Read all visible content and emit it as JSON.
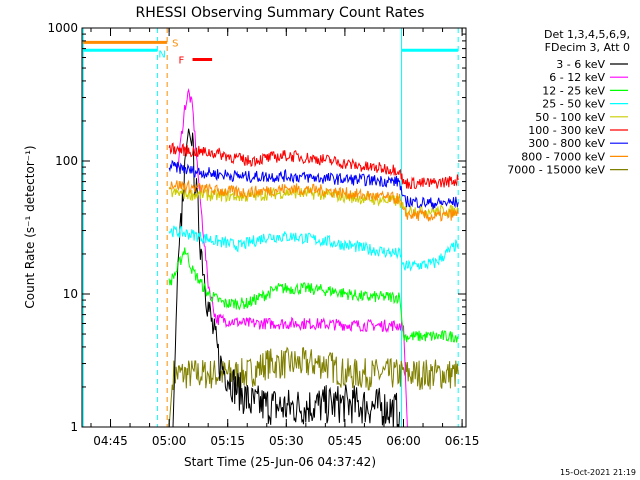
{
  "chart_data": {
    "type": "line",
    "title": "RHESSI Observing Summary Count Rates",
    "xlabel": "Start Time (25-Jun-06 04:37:42)",
    "ylabel": "Count Rate (s⁻¹ detector⁻¹)",
    "y_scale": "log",
    "ylim": [
      1,
      1000
    ],
    "xlim": [
      "04:37:42",
      "06:16:00"
    ],
    "x_ticks": [
      "04:45",
      "05:00",
      "05:15",
      "05:30",
      "05:45",
      "06:00",
      "06:15"
    ],
    "y_ticks": [
      "1",
      "10",
      "100",
      "1000"
    ],
    "legend_header": [
      "Det 1,3,4,5,6,9,",
      "FDecim 3, Att 0"
    ],
    "legend_placement": "right",
    "timestamp": "15-Oct-2021 21:19",
    "markers": {
      "S": "S",
      "N": "N",
      "F": "F"
    },
    "series": [
      {
        "name": "3 - 6 keV",
        "color": "#000000",
        "points": [
          [
            "05:01",
            1
          ],
          [
            "05:02",
            10
          ],
          [
            "05:04",
            100
          ],
          [
            "05:05",
            175
          ],
          [
            "05:06",
            120
          ],
          [
            "05:08",
            25
          ],
          [
            "05:10",
            8
          ],
          [
            "05:13",
            3
          ],
          [
            "05:17",
            2
          ],
          [
            "05:21",
            1.5
          ],
          [
            "05:30",
            1.4
          ],
          [
            "05:45",
            1.5
          ],
          [
            "05:55",
            1.4
          ],
          [
            "05:59",
            1.3
          ]
        ]
      },
      {
        "name": "6 - 12 keV",
        "color": "#ff00ff",
        "points": [
          [
            "05:02",
            80
          ],
          [
            "05:04",
            250
          ],
          [
            "05:05",
            330
          ],
          [
            "05:06",
            250
          ],
          [
            "05:08",
            50
          ],
          [
            "05:10",
            12
          ],
          [
            "05:12",
            6.5
          ],
          [
            "05:20",
            6
          ],
          [
            "05:35",
            6
          ],
          [
            "05:50",
            5.8
          ],
          [
            "06:00",
            5.8
          ],
          [
            "06:01",
            1
          ]
        ]
      },
      {
        "name": "12 - 25 keV",
        "color": "#00ff00",
        "points": [
          [
            "05:00",
            12
          ],
          [
            "05:02",
            15
          ],
          [
            "05:04",
            22
          ],
          [
            "05:06",
            15
          ],
          [
            "05:10",
            10
          ],
          [
            "05:14",
            8.5
          ],
          [
            "05:20",
            8.5
          ],
          [
            "05:28",
            11
          ],
          [
            "05:35",
            11
          ],
          [
            "05:42",
            10.5
          ],
          [
            "05:50",
            9.5
          ],
          [
            "05:59",
            9.5
          ],
          [
            "06:00",
            4.8
          ],
          [
            "06:14",
            4.8
          ]
        ]
      },
      {
        "name": "25 - 50 keV",
        "color": "#00ffff",
        "points": [
          [
            "05:00",
            30
          ],
          [
            "05:06",
            28
          ],
          [
            "05:12",
            25
          ],
          [
            "05:18",
            23
          ],
          [
            "05:25",
            27
          ],
          [
            "05:32",
            27
          ],
          [
            "05:40",
            25
          ],
          [
            "05:50",
            22
          ],
          [
            "05:59",
            20
          ],
          [
            "06:00",
            16
          ],
          [
            "06:08",
            17
          ],
          [
            "06:14",
            24
          ]
        ]
      },
      {
        "name": "50 - 100 keV",
        "color": "#cccc00",
        "points": [
          [
            "05:00",
            58
          ],
          [
            "05:06",
            56
          ],
          [
            "05:12",
            55
          ],
          [
            "05:20",
            54
          ],
          [
            "05:30",
            58
          ],
          [
            "05:40",
            56
          ],
          [
            "05:50",
            52
          ],
          [
            "05:59",
            50
          ],
          [
            "06:00",
            43
          ],
          [
            "06:08",
            42
          ],
          [
            "06:14",
            42
          ]
        ]
      },
      {
        "name": "100 - 300 keV",
        "color": "#ff0000",
        "points": [
          [
            "05:00",
            125
          ],
          [
            "05:06",
            118
          ],
          [
            "05:12",
            115
          ],
          [
            "05:20",
            100
          ],
          [
            "05:30",
            110
          ],
          [
            "05:40",
            102
          ],
          [
            "05:50",
            90
          ],
          [
            "05:59",
            86
          ],
          [
            "06:00",
            68
          ],
          [
            "06:08",
            68
          ],
          [
            "06:14",
            72
          ]
        ]
      },
      {
        "name": "300 - 800 keV",
        "color": "#0000ff",
        "points": [
          [
            "05:00",
            92
          ],
          [
            "05:06",
            84
          ],
          [
            "05:12",
            80
          ],
          [
            "05:20",
            76
          ],
          [
            "05:30",
            77
          ],
          [
            "05:40",
            74
          ],
          [
            "05:50",
            72
          ],
          [
            "05:59",
            70
          ],
          [
            "06:00",
            50
          ],
          [
            "06:08",
            48
          ],
          [
            "06:14",
            49
          ]
        ]
      },
      {
        "name": "800 - 7000 keV",
        "color": "#ff8c00",
        "points": [
          [
            "05:00",
            68
          ],
          [
            "05:06",
            63
          ],
          [
            "05:12",
            60
          ],
          [
            "05:20",
            58
          ],
          [
            "05:30",
            62
          ],
          [
            "05:40",
            60
          ],
          [
            "05:50",
            55
          ],
          [
            "05:59",
            52
          ],
          [
            "06:00",
            40
          ],
          [
            "06:08",
            38
          ],
          [
            "06:14",
            40
          ]
        ]
      },
      {
        "name": "7000 - 15000 keV",
        "color": "#808000",
        "points": [
          [
            "05:00",
            1
          ],
          [
            "05:01",
            2.5
          ],
          [
            "05:20",
            2.5
          ],
          [
            "05:25",
            3
          ],
          [
            "05:40",
            3
          ],
          [
            "05:45",
            2.5
          ],
          [
            "06:14",
            2.5
          ]
        ]
      }
    ],
    "attenuator_bars": [
      {
        "color": "#00ffff",
        "value": 680,
        "start": "04:38:00",
        "end": "04:57:00"
      },
      {
        "color": "#00ffff",
        "value": 680,
        "start": "05:59:30",
        "end": "06:14:00"
      }
    ],
    "saa_bar": {
      "color": "#ff8c00",
      "value": 780,
      "start": "04:38:00",
      "end": "04:59:30"
    },
    "flare_bar": {
      "color": "#ff0000",
      "value": 580,
      "start": "05:06:00",
      "end": "05:11:00"
    },
    "vertical_lines": [
      {
        "color": "#00ffff",
        "style": "dashed",
        "time": "04:57:00"
      },
      {
        "color": "#ff8c00",
        "style": "dashed",
        "time": "04:59:30"
      },
      {
        "color": "#00ffff",
        "style": "solid",
        "time": "05:59:30"
      },
      {
        "color": "#00ffff",
        "style": "dashed",
        "time": "06:14:00"
      },
      {
        "color": "#00ffff",
        "style": "solid",
        "time": "04:38:00"
      }
    ]
  }
}
